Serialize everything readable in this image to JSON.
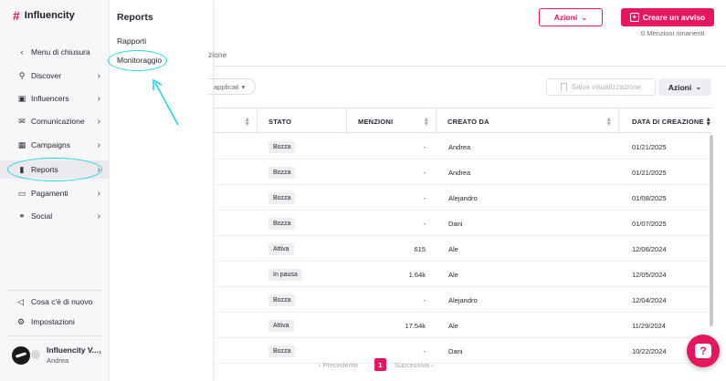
{
  "brand": {
    "name": "Influencity"
  },
  "sidebar": {
    "items": [
      {
        "label": "Menu di chiusura",
        "icon": "chevron-left-icon",
        "glyph": "‹",
        "has_chevron": false
      },
      {
        "label": "Discover",
        "icon": "people-search-icon",
        "glyph": "⚲",
        "has_chevron": true
      },
      {
        "label": "Influencers",
        "icon": "id-card-icon",
        "glyph": "▣",
        "has_chevron": true
      },
      {
        "label": "Comunicazione",
        "icon": "envelope-icon",
        "glyph": "✉",
        "has_chevron": true
      },
      {
        "label": "Campaigns",
        "icon": "calendar-icon",
        "glyph": "▦",
        "has_chevron": true
      },
      {
        "label": "Reports",
        "icon": "bar-chart-icon",
        "glyph": "▮",
        "has_chevron": true,
        "active": true
      },
      {
        "label": "Pagamenti",
        "icon": "wallet-icon",
        "glyph": "▭",
        "has_chevron": true
      },
      {
        "label": "Social",
        "icon": "share-icon",
        "glyph": "⚭",
        "has_chevron": true
      }
    ],
    "footer": [
      {
        "label": "Cosa c'è di nuovo",
        "icon": "megaphone-icon",
        "glyph": "◁"
      },
      {
        "label": "Impostazioni",
        "icon": "gear-icon",
        "glyph": "⚙"
      }
    ],
    "user": {
      "name": "Influencity V...",
      "sub": "Andrea"
    }
  },
  "submenu": {
    "title": "Reports",
    "items": [
      {
        "label": "Rapporti"
      },
      {
        "label": "Monitoraggio"
      }
    ]
  },
  "header": {
    "azioni_label": "Azioni",
    "create_label": "Creare un avviso",
    "mentions_left": "0 Menzioni rimanenti",
    "tab_fragment": "zione",
    "filter_fragment": "applicati",
    "save_view_label": "Salva visualizzazione",
    "actions_label": "Azioni"
  },
  "table": {
    "headers": [
      "STATO",
      "MENZIONI",
      "CREATO DA",
      "DATA DI CREAZIONE"
    ],
    "rows": [
      {
        "stato": "Bozza",
        "menzioni": "-",
        "creato_da": "Andrea",
        "data": "01/21/2025"
      },
      {
        "stato": "Bozza",
        "menzioni": "-",
        "creato_da": "Andrea",
        "data": "01/21/2025"
      },
      {
        "stato": "Bozza",
        "menzioni": "-",
        "creato_da": "Alejandro",
        "data": "01/08/2025"
      },
      {
        "stato": "Bozza",
        "menzioni": "-",
        "creato_da": "Dani",
        "data": "01/07/2025"
      },
      {
        "stato": "Attiva",
        "menzioni": "615",
        "creato_da": "Ale",
        "data": "12/06/2024"
      },
      {
        "stato": "In pausa",
        "menzioni": "1.64k",
        "creato_da": "Ale",
        "data": "12/05/2024"
      },
      {
        "stato": "Bozza",
        "menzioni": "-",
        "creato_da": "Alejandro",
        "data": "12/04/2024"
      },
      {
        "stato": "Attiva",
        "menzioni": "17.54k",
        "creato_da": "Ale",
        "data": "11/29/2024"
      },
      {
        "stato": "Bozza",
        "menzioni": "-",
        "creato_da": "Dani",
        "data": "10/22/2024"
      }
    ]
  },
  "pagination": {
    "prev": "Precedente",
    "current": "1",
    "next": "Successiva"
  },
  "colors": {
    "accent": "#e5175e",
    "annotation": "#24d4e6"
  }
}
